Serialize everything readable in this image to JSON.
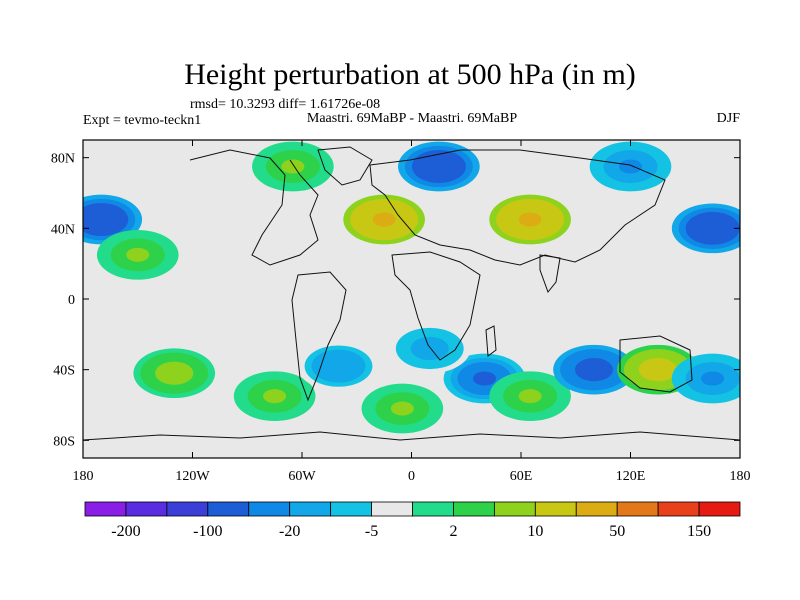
{
  "chart_data": {
    "type": "heatmap",
    "title": "Height perturbation at 500 hPa (in m)",
    "subtitle": "rmsd= 10.3293 diff= 1.61726e-08",
    "left_label": "Expt = tevmo-teckn1",
    "center_label": "Maastri.  69MaBP - Maastri.  69MaBP",
    "right_label": "DJF",
    "xlim": [
      -180,
      180
    ],
    "ylim": [
      -90,
      90
    ],
    "x_ticks": [
      {
        "value": -180,
        "label": "180"
      },
      {
        "value": -120,
        "label": "120W"
      },
      {
        "value": -60,
        "label": "60W"
      },
      {
        "value": 0,
        "label": "0"
      },
      {
        "value": 60,
        "label": "60E"
      },
      {
        "value": 120,
        "label": "120E"
      },
      {
        "value": 180,
        "label": "180"
      }
    ],
    "y_ticks": [
      {
        "value": 80,
        "label": "80N"
      },
      {
        "value": 40,
        "label": "40N"
      },
      {
        "value": 0,
        "label": "0"
      },
      {
        "value": -40,
        "label": "40S"
      },
      {
        "value": -80,
        "label": "80S"
      }
    ],
    "colorbar": {
      "levels": [
        -200,
        -150,
        -100,
        -50,
        -20,
        -10,
        -5,
        -2,
        2,
        5,
        10,
        20,
        50,
        100,
        150,
        200
      ],
      "colors": [
        "#8a1ee6",
        "#5b2de0",
        "#3b3fd8",
        "#1d5ed6",
        "#0f88e6",
        "#12a7e8",
        "#14c3e3",
        "#e8e8e8",
        "#22dc8c",
        "#2ed24a",
        "#8ed21e",
        "#c8c814",
        "#dcac14",
        "#e2781a",
        "#e8401a",
        "#e61a12"
      ],
      "labels": [
        {
          "value": -200,
          "label": "-200"
        },
        {
          "value": -100,
          "label": "-100"
        },
        {
          "value": -20,
          "label": "-20"
        },
        {
          "value": -5,
          "label": "-5"
        },
        {
          "value": 2,
          "label": "2"
        },
        {
          "value": 10,
          "label": "10"
        },
        {
          "value": 50,
          "label": "50"
        },
        {
          "value": 150,
          "label": "150"
        }
      ]
    },
    "anomalies": [
      {
        "lon": -15,
        "lat": 45,
        "value": 60
      },
      {
        "lon": 65,
        "lat": 45,
        "value": 55
      },
      {
        "lon": -170,
        "lat": 45,
        "value": -40
      },
      {
        "lon": 165,
        "lat": 40,
        "value": -40
      },
      {
        "lon": 15,
        "lat": 75,
        "value": -35
      },
      {
        "lon": -65,
        "lat": 75,
        "value": 12
      },
      {
        "lon": 120,
        "lat": 75,
        "value": -12
      },
      {
        "lon": -150,
        "lat": 25,
        "value": 10
      },
      {
        "lon": -130,
        "lat": -42,
        "value": 15
      },
      {
        "lon": -75,
        "lat": -55,
        "value": 12
      },
      {
        "lon": -40,
        "lat": -38,
        "value": -10
      },
      {
        "lon": 40,
        "lat": -45,
        "value": -25
      },
      {
        "lon": 65,
        "lat": -55,
        "value": 12
      },
      {
        "lon": 100,
        "lat": -40,
        "value": -30
      },
      {
        "lon": 135,
        "lat": -40,
        "value": 30
      },
      {
        "lon": 165,
        "lat": -45,
        "value": -12
      },
      {
        "lon": -5,
        "lat": -62,
        "value": 12
      },
      {
        "lon": 10,
        "lat": -28,
        "value": -8
      }
    ]
  }
}
